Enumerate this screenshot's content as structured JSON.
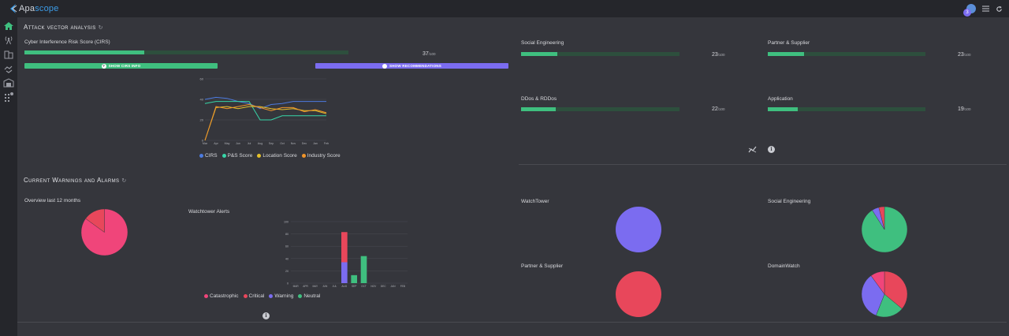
{
  "app": {
    "logo_prefix": "Apa",
    "logo_suffix": "scope",
    "avatar_badge": "3",
    "icons": [
      "menu-icon",
      "refresh-icon"
    ]
  },
  "sidebar": {
    "items": [
      "home-icon",
      "antenna-icon",
      "building-icon",
      "handshake-icon",
      "warehouse-icon",
      "apps-icon"
    ]
  },
  "attack_vector": {
    "title": "Attack vector analysis",
    "cirs_label": "Cyber Interference Risk Score (CIRS)",
    "cirs_score": "37",
    "cirs_value": 37,
    "denominator": "/100",
    "btn_info": "SHOW CIRS INFO",
    "btn_info_icon": "?",
    "btn_recommendations": "SHOW RECOMMENDATIONS",
    "categories": [
      {
        "label": "Social Engineering",
        "score": "23",
        "value": 23
      },
      {
        "label": "Partner & Supplier",
        "score": "23",
        "value": 23
      },
      {
        "label": "DDos & RDDos",
        "score": "22",
        "value": 22
      },
      {
        "label": "Application",
        "score": "19",
        "value": 19
      }
    ],
    "legend": [
      "CIRS",
      "P&S Score",
      "Location Score",
      "Industry Score"
    ],
    "colors": {
      "cirs": "#4c7be0",
      "ps": "#37d6a8",
      "location": "#e6c12a",
      "industry": "#f0952a"
    }
  },
  "warnings": {
    "title": "Current Warnings and Alarms",
    "overview_label": "Overview last 12 months",
    "watchtower_alerts_label": "Watchtower Alerts",
    "legend": [
      "Catastrophic",
      "Critical",
      "Warning",
      "Neutral"
    ],
    "colors": {
      "catastrophic": "#f0457a",
      "critical": "#e8475b",
      "warning": "#7b6cf0",
      "neutral": "#3fbf7f"
    },
    "pies": [
      {
        "label": "WatchTower"
      },
      {
        "label": "Social Engineering"
      },
      {
        "label": "Partner & Supplier"
      },
      {
        "label": "DomainWatch"
      }
    ]
  },
  "chart_data": [
    {
      "type": "line",
      "x": [
        "Mar",
        "Apr",
        "May",
        "Jun",
        "Jul",
        "Aug",
        "Sep",
        "Oct",
        "Nov",
        "Dec",
        "Jan",
        "Feb"
      ],
      "ylim": [
        0,
        60
      ],
      "yticks": [
        "0",
        "20",
        "40",
        "60"
      ],
      "series": [
        {
          "name": "CIRS",
          "values": [
            40,
            42,
            41,
            38,
            36,
            31,
            35,
            36,
            38,
            38,
            38,
            38
          ]
        },
        {
          "name": "P&S Score",
          "values": [
            36,
            38,
            38,
            38,
            38,
            20,
            20,
            24,
            24,
            24,
            24,
            24
          ]
        },
        {
          "name": "Location Score",
          "values": [
            0,
            32,
            33,
            31,
            33,
            33,
            31,
            30,
            31,
            29,
            29,
            26
          ]
        },
        {
          "name": "Industry Score",
          "values": [
            0,
            33,
            31,
            33,
            35,
            32,
            29,
            32,
            32,
            28,
            30,
            27
          ]
        }
      ]
    },
    {
      "type": "bar",
      "categories": [
        "MAR",
        "APR",
        "MAY",
        "JUN",
        "JUL",
        "AUG",
        "SEP",
        "OCT",
        "NOV",
        "DEC",
        "JAN",
        "FEB"
      ],
      "ylim": [
        0,
        100
      ],
      "yticks": [
        "0",
        "20",
        "40",
        "60",
        "80",
        "100"
      ],
      "series": [
        {
          "name": "Catastrophic",
          "values": [
            0,
            0,
            0,
            0,
            0,
            0,
            0,
            0,
            0,
            0,
            0,
            0
          ]
        },
        {
          "name": "Critical",
          "values": [
            0,
            0,
            0,
            0,
            0,
            49,
            0,
            0,
            0,
            0,
            0,
            0
          ]
        },
        {
          "name": "Warning",
          "values": [
            0,
            0,
            0,
            0,
            0,
            34,
            0,
            0,
            0,
            0,
            0,
            0
          ]
        },
        {
          "name": "Neutral",
          "values": [
            0,
            0,
            0,
            0,
            0,
            0,
            13,
            44,
            0,
            0,
            0,
            0
          ]
        }
      ]
    },
    {
      "type": "pie",
      "slices": [
        {
          "name": "Catastrophic",
          "value": 85
        },
        {
          "name": "Critical",
          "value": 15
        }
      ]
    },
    {
      "type": "pie",
      "slices": [
        {
          "name": "Warning",
          "value": 100
        }
      ]
    },
    {
      "type": "pie",
      "slices": [
        {
          "name": "Neutral",
          "value": 91
        },
        {
          "name": "Warning",
          "value": 5
        },
        {
          "name": "Critical",
          "value": 4
        }
      ]
    },
    {
      "type": "pie",
      "slices": [
        {
          "name": "Critical",
          "value": 100
        }
      ]
    },
    {
      "type": "pie",
      "slices": [
        {
          "name": "Critical",
          "value": 36
        },
        {
          "name": "Neutral",
          "value": 20
        },
        {
          "name": "Warning",
          "value": 34
        },
        {
          "name": "Catastrophic",
          "value": 10
        }
      ]
    }
  ]
}
